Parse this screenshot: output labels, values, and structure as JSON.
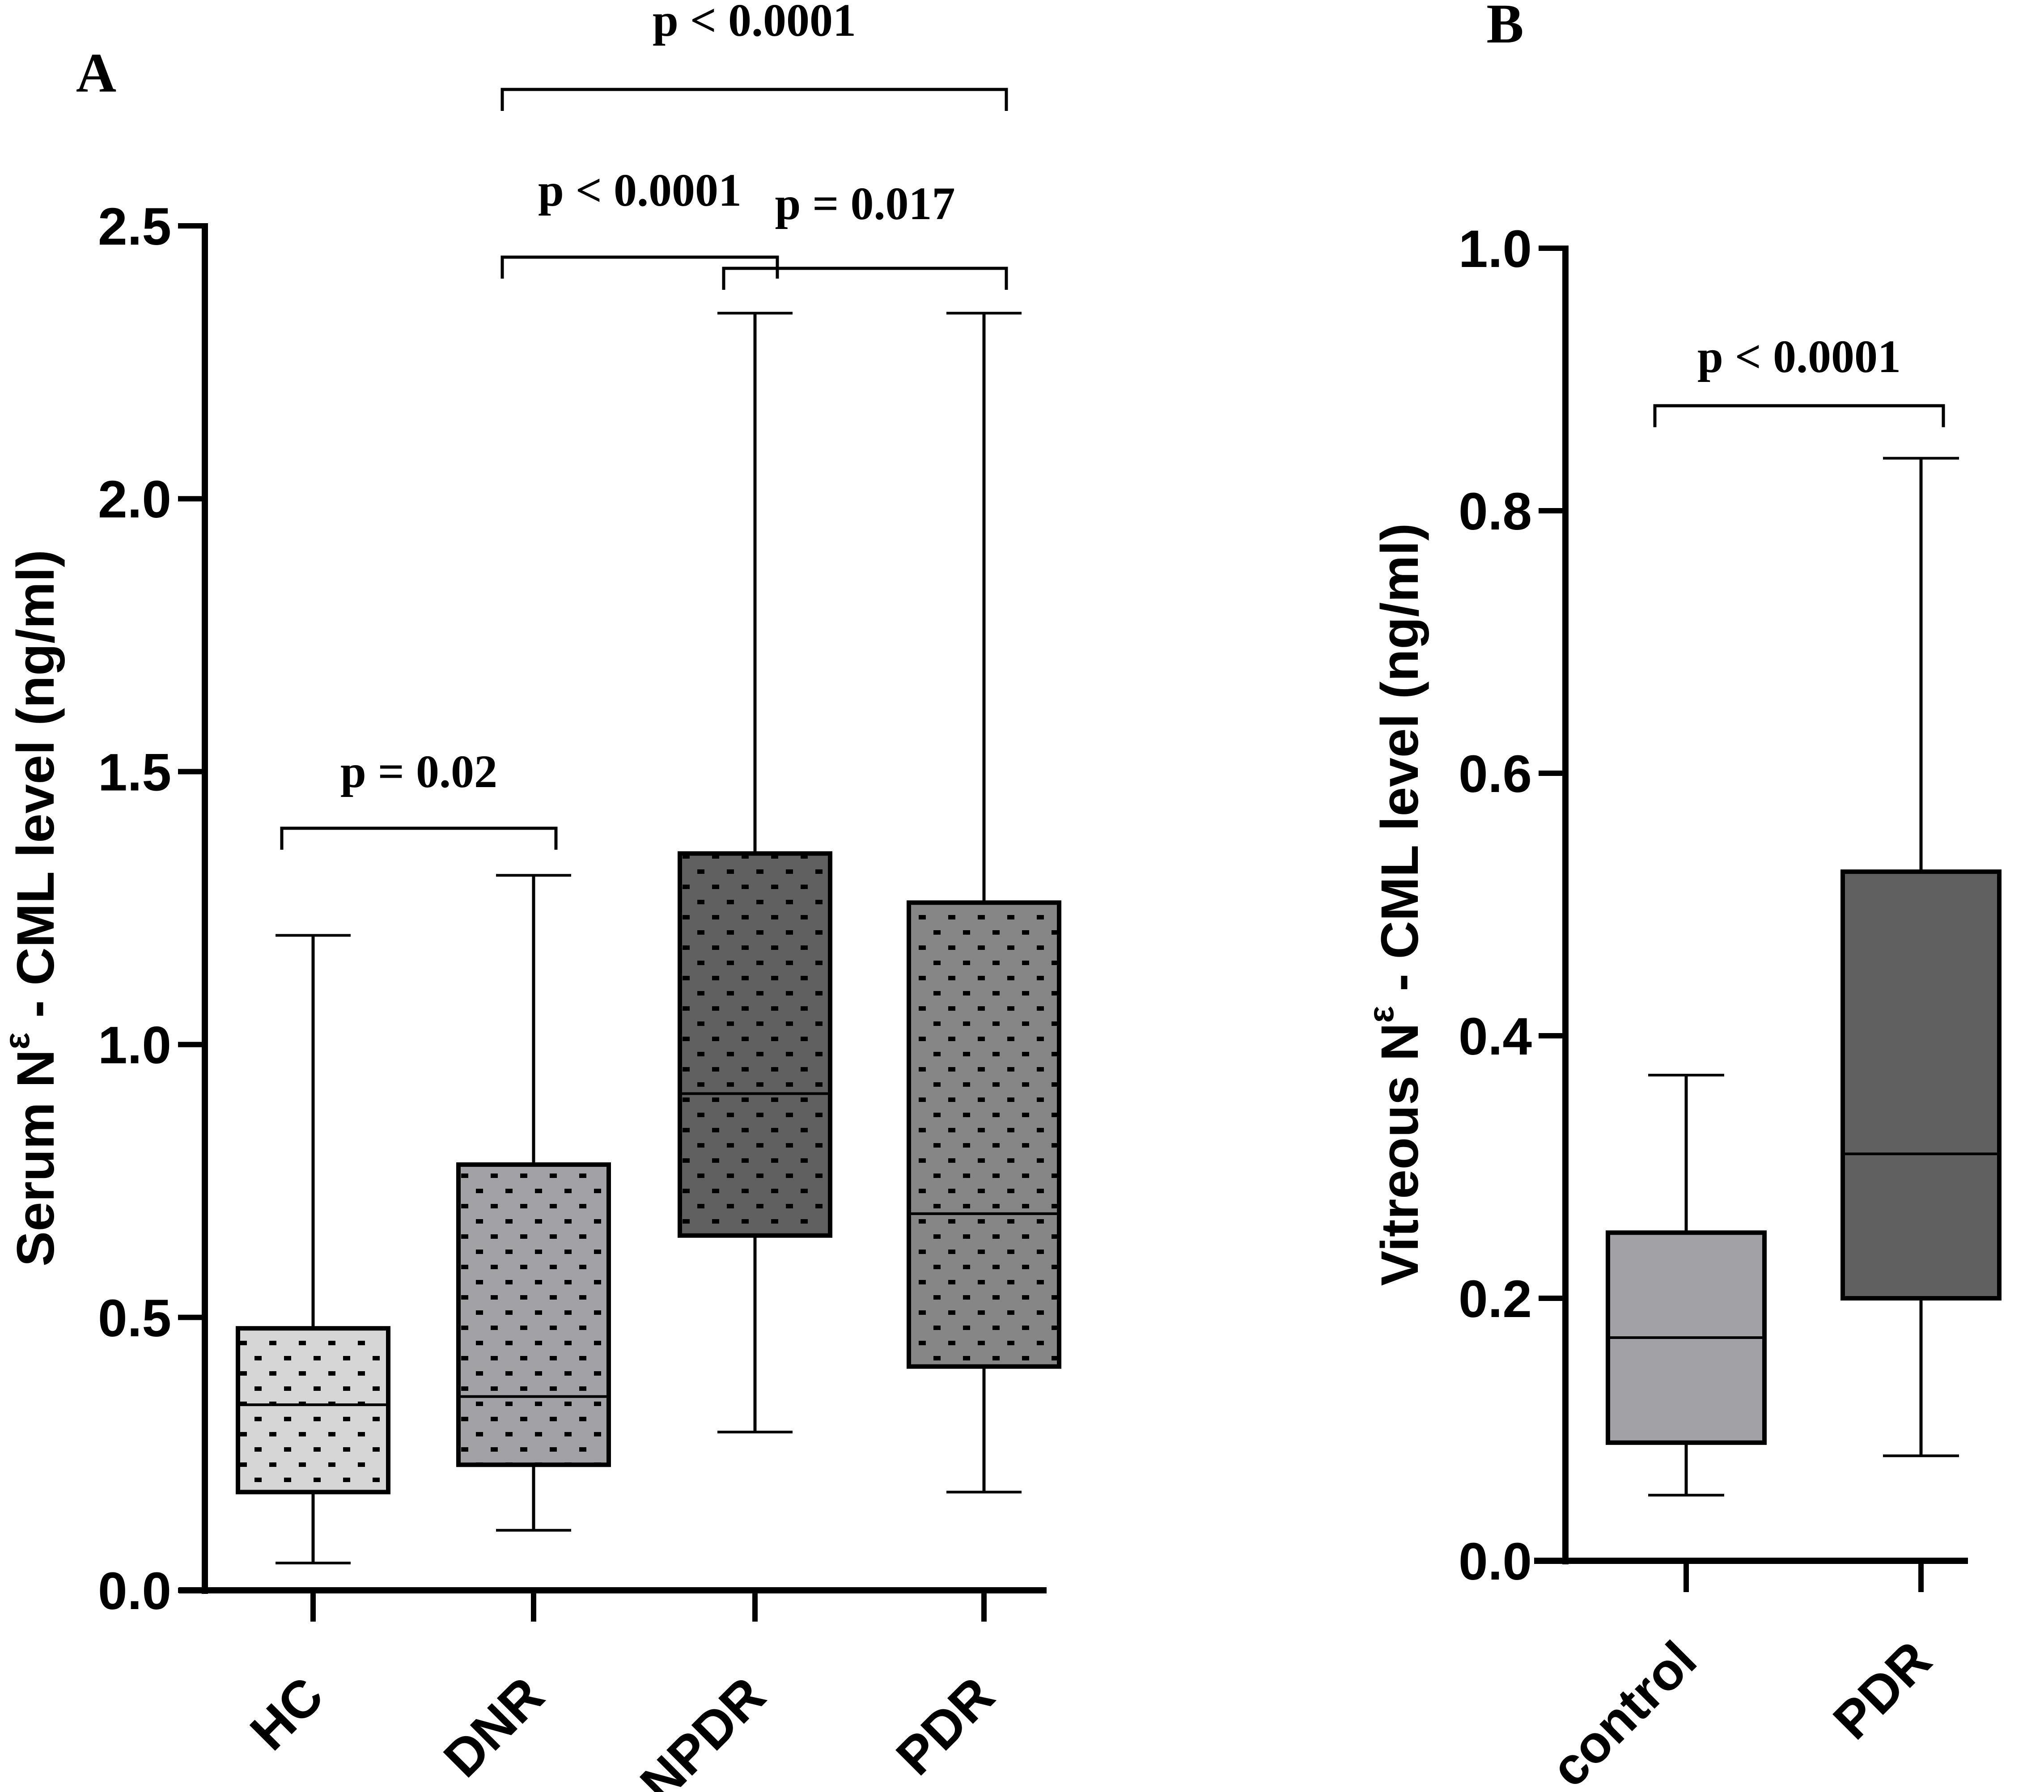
{
  "chart_data": [
    {
      "panel": "A",
      "type": "box",
      "panel_label": "A",
      "ylabel_prefix": "Serum N",
      "ylabel_superscript": "ε",
      "ylabel_suffix": " - CML level (ng/ml)",
      "ylim": [
        0,
        2.5
      ],
      "yticks": [
        0.0,
        0.5,
        1.0,
        1.5,
        2.0,
        2.5
      ],
      "ytick_labels": [
        "0.0",
        "0.5",
        "1.0",
        "1.5",
        "2.0",
        "2.5"
      ],
      "categories": [
        "HC",
        "DNR",
        "NPDR",
        "PDR"
      ],
      "boxes": [
        {
          "name": "HC",
          "min": 0.05,
          "q1": 0.18,
          "median": 0.34,
          "q3": 0.48,
          "max": 1.2,
          "fill": "#d6d6d6",
          "dotted": true
        },
        {
          "name": "DNR",
          "min": 0.11,
          "q1": 0.23,
          "median": 0.355,
          "q3": 0.78,
          "max": 1.31,
          "fill": "#a2a1a6",
          "dotted": true
        },
        {
          "name": "NPDR",
          "min": 0.29,
          "q1": 0.65,
          "median": 0.91,
          "q3": 1.35,
          "max": 2.34,
          "fill": "#606060",
          "dotted": true
        },
        {
          "name": "PDR",
          "min": 0.18,
          "q1": 0.41,
          "median": 0.69,
          "q3": 1.26,
          "max": 2.34,
          "fill": "#868686",
          "dotted": true
        }
      ],
      "comparisons": [
        {
          "from": "HC",
          "to": "DNR",
          "y": 1.4,
          "label": "p = 0.02"
        },
        {
          "from": "DNR",
          "to": "NPDR",
          "y": 2.44,
          "label": "p < 0.0001"
        },
        {
          "from": "NPDR",
          "to": "PDR",
          "y": 2.42,
          "label": "p = 0.017"
        },
        {
          "from": "DNR",
          "to": "PDR",
          "y": 2.75,
          "label": "p < 0.0001"
        }
      ],
      "grid": false
    },
    {
      "panel": "B",
      "type": "box",
      "panel_label": "B",
      "ylabel_prefix": "Vitreous N",
      "ylabel_superscript": "ε",
      "ylabel_suffix": " - CML level (ng/ml)",
      "ylim": [
        0,
        1.0
      ],
      "yticks": [
        0.0,
        0.2,
        0.4,
        0.6,
        0.8,
        1.0
      ],
      "ytick_labels": [
        "0.0",
        "0.2",
        "0.4",
        "0.6",
        "0.8",
        "1.0"
      ],
      "categories": [
        "control",
        "PDR"
      ],
      "boxes": [
        {
          "name": "control",
          "min": 0.05,
          "q1": 0.09,
          "median": 0.17,
          "q3": 0.25,
          "max": 0.37,
          "fill": "#a2a1a6",
          "dotted": false
        },
        {
          "name": "PDR",
          "min": 0.08,
          "q1": 0.2,
          "median": 0.31,
          "q3": 0.525,
          "max": 0.84,
          "fill": "#606060",
          "dotted": false
        }
      ],
      "comparisons": [
        {
          "from": "control",
          "to": "PDR",
          "y": 0.88,
          "label": "p < 0.0001"
        }
      ],
      "grid": false
    }
  ]
}
